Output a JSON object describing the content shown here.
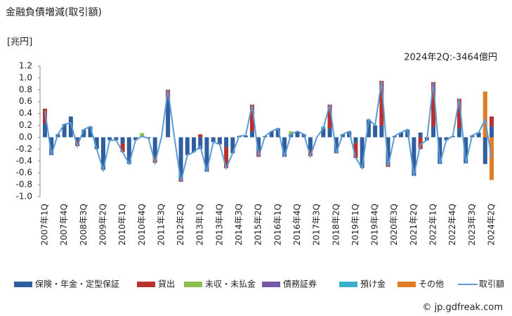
{
  "chart_data": {
    "type": "bar",
    "title": "金融負債増減(取引額)",
    "y_label": "[兆円]",
    "annotation": "2024年2Q:-3464億円",
    "source": "© jp.gdfreak.com",
    "categories": [
      "2007年1Q",
      null,
      null,
      "2007年4Q",
      null,
      null,
      "2008年3Q",
      null,
      null,
      "2009年2Q",
      null,
      null,
      "2010年1Q",
      null,
      null,
      "2010年4Q",
      null,
      null,
      "2011年3Q",
      null,
      null,
      "2012年2Q",
      null,
      null,
      "2013年1Q",
      null,
      null,
      "2013年4Q",
      null,
      null,
      "2014年3Q",
      null,
      null,
      "2015年2Q",
      null,
      null,
      "2016年1Q",
      null,
      null,
      "2016年4Q",
      null,
      null,
      "2017年3Q",
      null,
      null,
      "2018年2Q",
      null,
      null,
      "2019年1Q",
      null,
      null,
      "2019年4Q",
      null,
      null,
      "2020年3Q",
      null,
      null,
      "2021年2Q",
      null,
      null,
      "2022年1Q",
      null,
      null,
      "2022年4Q",
      null,
      null,
      "2023年3Q",
      null,
      null,
      "2024年2Q"
    ],
    "ylim": [
      -1.0,
      1.2
    ],
    "yticks": [
      1.2,
      {
        "value": 1,
        "label": "1.0"
      },
      0.8,
      0.6,
      0.4,
      0.2,
      {
        "value": 0,
        "label": "0.0"
      },
      -0.2,
      -0.4,
      -0.6,
      -0.8,
      {
        "value": -1,
        "label": "-1.0"
      }
    ],
    "grid": false,
    "series": [
      {
        "name": "保険・年金・定型保証",
        "color": "#2f5f9e",
        "values": [
          0.23,
          -0.3,
          0.05,
          0.22,
          0.35,
          -0.05,
          0.13,
          0.18,
          -0.2,
          -0.55,
          -0.05,
          -0.05,
          -0.1,
          -0.45,
          -0.05,
          0.02,
          -0.02,
          -0.33,
          0.0,
          0.65,
          0.0,
          -0.7,
          -0.3,
          -0.25,
          -0.2,
          -0.58,
          -0.08,
          -0.12,
          -0.17,
          -0.27,
          0.02,
          0.03,
          0.1,
          -0.23,
          0.02,
          0.1,
          0.15,
          -0.33,
          0.05,
          0.1,
          0.05,
          -0.22,
          0.0,
          0.15,
          0.15,
          -0.27,
          0.05,
          0.1,
          -0.1,
          -0.52,
          0.3,
          0.2,
          0.2,
          -0.45,
          0.02,
          0.08,
          0.13,
          -0.65,
          0.08,
          -0.05,
          0.18,
          -0.45,
          -0.05,
          0.02,
          0.15,
          -0.44,
          0.03,
          0.08,
          -0.45,
          0.18
        ]
      },
      {
        "name": "貸出",
        "color": "#b8312f",
        "values": [
          0.25,
          0,
          0,
          0,
          0,
          -0.1,
          0,
          0,
          0,
          0,
          0,
          0,
          -0.15,
          0,
          0,
          0,
          0,
          -0.1,
          0,
          0.15,
          0,
          -0.05,
          0,
          0,
          0.05,
          0,
          0,
          0,
          -0.35,
          0,
          0,
          0,
          0.45,
          -0.1,
          0,
          0,
          0,
          0,
          0,
          0,
          0,
          -0.1,
          0,
          0,
          0.4,
          0,
          0,
          0,
          -0.25,
          0,
          0,
          0,
          0.75,
          -0.05,
          0,
          0,
          0,
          0,
          -0.2,
          0,
          0.75,
          0,
          0,
          0,
          0.5,
          0,
          0,
          0,
          0,
          0.17
        ]
      },
      {
        "name": "未収・未払金",
        "color": "#8dbf4d",
        "values": [
          0,
          0,
          0,
          0,
          0,
          0,
          0,
          0,
          0,
          0,
          0,
          0,
          0,
          0,
          0,
          0.05,
          0,
          0,
          0,
          0,
          0,
          0,
          0,
          0,
          0,
          0,
          0,
          0,
          0,
          0,
          0,
          0,
          0,
          0,
          0,
          0,
          0,
          0,
          0.05,
          0,
          0,
          0,
          0,
          0,
          0,
          0,
          0,
          0,
          0,
          0,
          0,
          0,
          0,
          0,
          0,
          0,
          0,
          0,
          0,
          0,
          0,
          0,
          0,
          0,
          0,
          0,
          0,
          0,
          0,
          0
        ]
      },
      {
        "name": "債務証券",
        "color": "#7657a8",
        "values": [
          0,
          0,
          0,
          0,
          0,
          0,
          0,
          0,
          0,
          0,
          0,
          0,
          0,
          0,
          0,
          0,
          0,
          0,
          0,
          0,
          0,
          0,
          0,
          0,
          0,
          0,
          0,
          0,
          0,
          0,
          0,
          0,
          0,
          0,
          0,
          0,
          0,
          0,
          0,
          0,
          0,
          0,
          0,
          0,
          0,
          0,
          0,
          0,
          0,
          0,
          0,
          0,
          0,
          0,
          0,
          0,
          0,
          0,
          0,
          0,
          0,
          0,
          0,
          0,
          0,
          0,
          0,
          0,
          0,
          0
        ]
      },
      {
        "name": "預け金",
        "color": "#3aafc9",
        "values": [
          0,
          0,
          0,
          0,
          0,
          0,
          0,
          0,
          0,
          0,
          0,
          0,
          0,
          0,
          0,
          0,
          0,
          0,
          0,
          0,
          0,
          0,
          0,
          0,
          0,
          0,
          0,
          0,
          0,
          0,
          0,
          0,
          0,
          0,
          0,
          0,
          0,
          0,
          0,
          0,
          0,
          0,
          0,
          0.03,
          0,
          0,
          0,
          0,
          0,
          0,
          0,
          0,
          0,
          0,
          0,
          0,
          0,
          0,
          0,
          0,
          0,
          0,
          0,
          0,
          0,
          0,
          0,
          0,
          0,
          0
        ]
      },
      {
        "name": "その他",
        "color": "#e07d22",
        "values": [
          0,
          0,
          0,
          0,
          0,
          0,
          0,
          0,
          0,
          0,
          0,
          0,
          0,
          0,
          0,
          0,
          0,
          0,
          0,
          0,
          0,
          0,
          0,
          0,
          0,
          0,
          0,
          0,
          0,
          0,
          0,
          0,
          0,
          0,
          0,
          0,
          0,
          0,
          0,
          0,
          0,
          0,
          0,
          0,
          0,
          0,
          0,
          0,
          0,
          0,
          0,
          0,
          0,
          0,
          0,
          0,
          0,
          0,
          0,
          0,
          0,
          0,
          0,
          0,
          0,
          0,
          0,
          0,
          0.77,
          -0.72
        ]
      },
      {
        "name": "取引額",
        "type": "line",
        "color": "#5b9bd5",
        "values": [
          0.45,
          -0.3,
          0.05,
          0.22,
          0.24,
          -0.15,
          0.13,
          0.18,
          -0.2,
          -0.55,
          -0.05,
          -0.05,
          -0.25,
          -0.45,
          -0.05,
          0.02,
          -0.02,
          -0.43,
          0.0,
          0.8,
          0.0,
          -0.75,
          -0.3,
          -0.25,
          -0.15,
          -0.58,
          -0.08,
          -0.12,
          -0.52,
          -0.27,
          0.02,
          0.03,
          0.55,
          -0.33,
          0.02,
          0.1,
          0.15,
          -0.33,
          0.05,
          0.1,
          0.05,
          -0.32,
          0.0,
          0.15,
          0.55,
          -0.27,
          0.05,
          0.1,
          -0.35,
          -0.52,
          0.3,
          0.2,
          0.95,
          -0.5,
          0.02,
          0.08,
          0.13,
          -0.65,
          -0.12,
          -0.05,
          0.93,
          -0.45,
          -0.05,
          0.02,
          0.65,
          -0.44,
          0.03,
          0.08,
          0.3,
          -0.35
        ]
      }
    ]
  }
}
